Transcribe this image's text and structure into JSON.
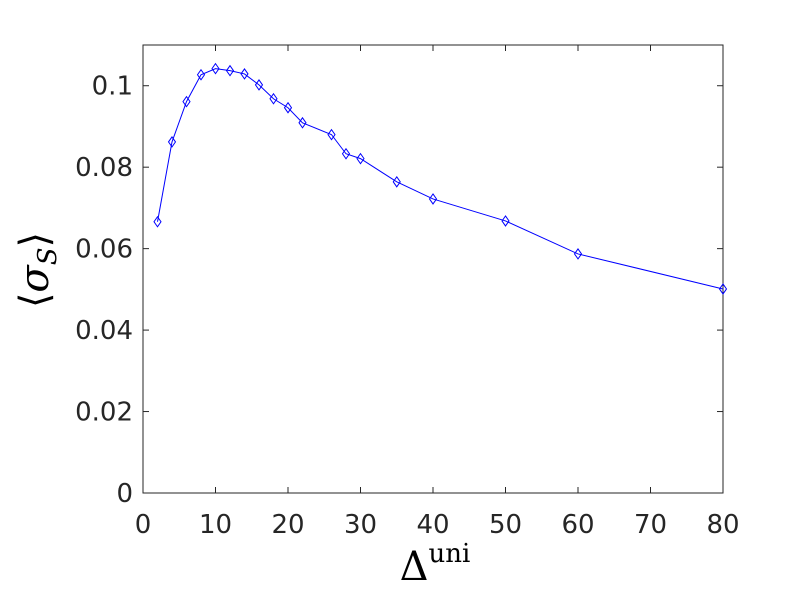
{
  "chart_data": {
    "type": "line",
    "xlabel": {
      "base": "Δ",
      "sup": "uni"
    },
    "ylabel": {
      "open": "⟨",
      "base": "σ",
      "sub": "S",
      "close": "⟩"
    },
    "xlim": [
      0,
      80
    ],
    "xticks": [
      0,
      10,
      20,
      30,
      40,
      50,
      60,
      70,
      80
    ],
    "ylim": [
      0,
      0.11
    ],
    "yticks": [
      0,
      0.02,
      0.04,
      0.06,
      0.08,
      0.1
    ],
    "grid": false,
    "marker": "diamond",
    "series": [
      {
        "color": "#0000ff",
        "x": [
          2,
          4,
          6,
          8,
          10,
          12,
          14,
          16,
          18,
          20,
          22,
          26,
          28,
          30,
          35,
          40,
          50,
          60,
          80
        ],
        "values": [
          0.0666,
          0.0862,
          0.0961,
          0.1027,
          0.1042,
          0.1037,
          0.1029,
          0.1002,
          0.0968,
          0.0946,
          0.0909,
          0.088,
          0.0833,
          0.0821,
          0.0764,
          0.0722,
          0.0668,
          0.0587,
          0.0501
        ]
      }
    ]
  }
}
